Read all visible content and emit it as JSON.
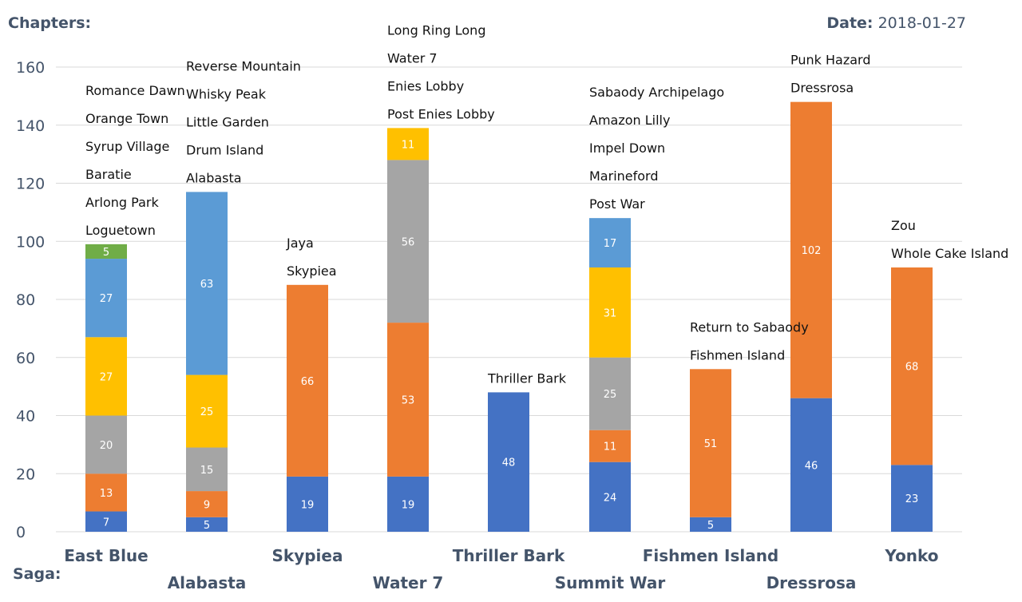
{
  "header": {
    "chapters_label": "Chapters:",
    "date_label": "Date:",
    "date_value": "2018-01-27",
    "saga_label": "Saga:"
  },
  "colors": {
    "blue_dark": "#4472c4",
    "orange": "#ed7d31",
    "gray": "#a5a5a5",
    "gold": "#ffc000",
    "blue_light": "#5b9bd5",
    "green": "#70ad47",
    "gridline": "#d9d9d9",
    "axis_text": "#44546a"
  },
  "chart_data": {
    "type": "bar",
    "stacked": true,
    "ylim": [
      0,
      160
    ],
    "yticks": [
      0,
      20,
      40,
      60,
      80,
      100,
      120,
      140,
      160
    ],
    "grid": true,
    "ylabel": "Chapters:",
    "xlabel": "Saga:",
    "categories": [
      "East Blue",
      "Alabasta",
      "Skypiea",
      "Water 7",
      "Thriller Bark",
      "Summit War",
      "Fishmen Island",
      "Dressrosa",
      "Yonko"
    ],
    "stacks": [
      {
        "saga": "East Blue",
        "segments": [
          {
            "arc": "Romance Dawn",
            "value": 7,
            "color": "#4472c4"
          },
          {
            "arc": "Orange Town",
            "value": 13,
            "color": "#ed7d31"
          },
          {
            "arc": "Syrup Village",
            "value": 20,
            "color": "#a5a5a5"
          },
          {
            "arc": "Baratie",
            "value": 27,
            "color": "#ffc000"
          },
          {
            "arc": "Arlong Park",
            "value": 27,
            "color": "#5b9bd5"
          },
          {
            "arc": "Loguetown",
            "value": 5,
            "color": "#70ad47"
          }
        ]
      },
      {
        "saga": "Alabasta",
        "segments": [
          {
            "arc": "Reverse Mountain",
            "value": 5,
            "color": "#4472c4"
          },
          {
            "arc": "Whisky Peak",
            "value": 9,
            "color": "#ed7d31"
          },
          {
            "arc": "Little Garden",
            "value": 15,
            "color": "#a5a5a5"
          },
          {
            "arc": "Drum Island",
            "value": 25,
            "color": "#ffc000"
          },
          {
            "arc": "Alabasta",
            "value": 63,
            "color": "#5b9bd5"
          }
        ]
      },
      {
        "saga": "Skypiea",
        "segments": [
          {
            "arc": "Jaya",
            "value": 19,
            "color": "#4472c4"
          },
          {
            "arc": "Skypiea",
            "value": 66,
            "color": "#ed7d31"
          }
        ]
      },
      {
        "saga": "Water 7",
        "segments": [
          {
            "arc": "Long Ring Long",
            "value": 19,
            "color": "#4472c4"
          },
          {
            "arc": "Water 7",
            "value": 53,
            "color": "#ed7d31"
          },
          {
            "arc": "Enies Lobby",
            "value": 56,
            "color": "#a5a5a5"
          },
          {
            "arc": "Post Enies Lobby",
            "value": 11,
            "color": "#ffc000"
          }
        ]
      },
      {
        "saga": "Thriller Bark",
        "segments": [
          {
            "arc": "Thriller Bark",
            "value": 48,
            "color": "#4472c4"
          }
        ]
      },
      {
        "saga": "Summit War",
        "segments": [
          {
            "arc": "Sabaody Archipelago",
            "value": 24,
            "color": "#4472c4"
          },
          {
            "arc": "Amazon Lilly",
            "value": 11,
            "color": "#ed7d31"
          },
          {
            "arc": "Impel Down",
            "value": 25,
            "color": "#a5a5a5"
          },
          {
            "arc": "Marineford",
            "value": 31,
            "color": "#ffc000"
          },
          {
            "arc": "Post War",
            "value": 17,
            "color": "#5b9bd5"
          }
        ]
      },
      {
        "saga": "Fishmen Island",
        "segments": [
          {
            "arc": "Return to Sabaody",
            "value": 5,
            "color": "#4472c4"
          },
          {
            "arc": "Fishmen Island",
            "value": 51,
            "color": "#ed7d31"
          }
        ]
      },
      {
        "saga": "Dressrosa",
        "segments": [
          {
            "arc": "Punk Hazard",
            "value": 46,
            "color": "#4472c4"
          },
          {
            "arc": "Dressrosa",
            "value": 102,
            "color": "#ed7d31"
          }
        ]
      },
      {
        "saga": "Yonko",
        "segments": [
          {
            "arc": "Zou",
            "value": 23,
            "color": "#4472c4"
          },
          {
            "arc": "Whole Cake Island",
            "value": 68,
            "color": "#ed7d31"
          }
        ]
      }
    ]
  }
}
